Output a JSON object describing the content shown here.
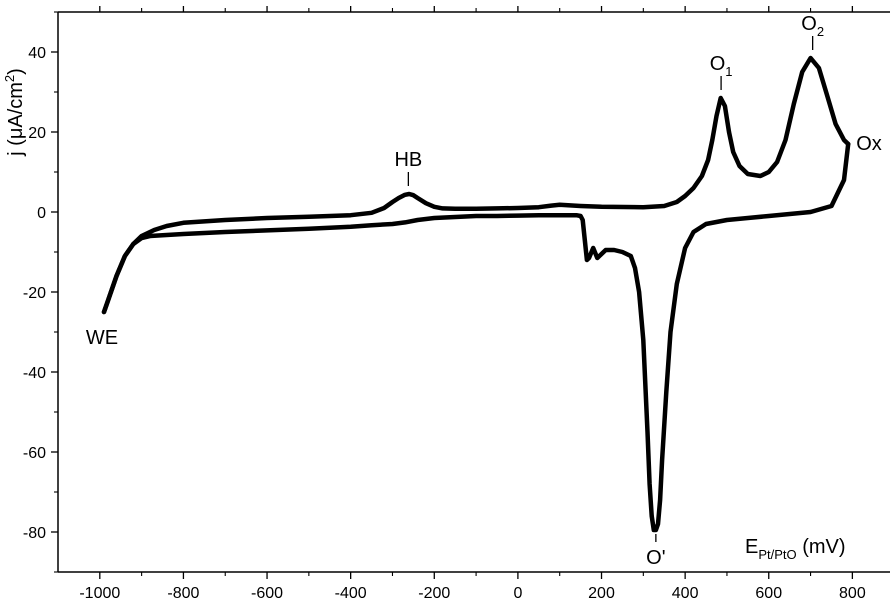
{
  "chart_data": {
    "type": "line",
    "title": "",
    "xlabel": {
      "main": "E",
      "sub": "Pt/PtO",
      "unit": " (mV)"
    },
    "ylabel": {
      "prefix": "j (",
      "mu": "μ",
      "unit": "A/cm",
      "sup": "2",
      "suffix": ")"
    },
    "xlim": [
      -1100,
      890
    ],
    "ylim": [
      -90,
      50
    ],
    "xticks": [
      -1000,
      -800,
      -600,
      -400,
      -200,
      0,
      200,
      400,
      600,
      800
    ],
    "xtick_labels": [
      "-1000",
      "-800",
      "-600",
      "-400",
      "-200",
      "0",
      "200",
      "400",
      "600",
      "800"
    ],
    "yticks": [
      -80,
      -60,
      -40,
      -20,
      0,
      20,
      40
    ],
    "ytick_labels": [
      "-80",
      "-60",
      "-40",
      "-20",
      "0",
      "20",
      "40"
    ],
    "grid": false,
    "series": [
      {
        "color": "#000000",
        "anodic_sweep": {
          "x": [
            -990,
            -980,
            -960,
            -940,
            -920,
            -900,
            -870,
            -840,
            -800,
            -700,
            -600,
            -500,
            -400,
            -350,
            -320,
            -300,
            -285,
            -270,
            -260,
            -250,
            -240,
            -220,
            -200,
            -180,
            -150,
            -100,
            -50,
            0,
            50,
            80,
            100,
            150,
            200,
            300,
            350,
            380,
            400,
            420,
            440,
            455,
            465,
            475,
            485,
            495,
            505,
            515,
            530,
            550,
            580,
            600,
            620,
            640,
            660,
            680,
            700,
            720,
            740,
            760,
            780,
            790
          ],
          "y": [
            -25,
            -22,
            -16,
            -11,
            -8,
            -6,
            -4.5,
            -3.5,
            -2.7,
            -2.0,
            -1.5,
            -1.2,
            -0.8,
            -0.2,
            1.0,
            2.5,
            3.5,
            4.3,
            4.5,
            4.2,
            3.5,
            2.2,
            1.3,
            0.9,
            0.8,
            0.8,
            0.9,
            1.0,
            1.2,
            1.6,
            1.8,
            1.5,
            1.3,
            1.2,
            1.5,
            2.5,
            4.0,
            6.0,
            9.0,
            13.0,
            18.0,
            24.0,
            28.5,
            26.5,
            20.0,
            15.0,
            11.5,
            9.5,
            9.0,
            10.0,
            12.5,
            18.0,
            27.0,
            35.0,
            38.5,
            36.0,
            29.0,
            22.0,
            18.0,
            17.0
          ]
        },
        "cathodic_sweep": {
          "x": [
            790,
            780,
            750,
            700,
            650,
            600,
            550,
            500,
            450,
            420,
            400,
            380,
            365,
            355,
            345,
            340,
            335,
            330,
            325,
            320,
            315,
            310,
            300,
            290,
            280,
            270,
            250,
            230,
            210,
            200,
            190,
            180,
            170,
            165,
            160,
            155,
            150,
            140,
            100,
            50,
            0,
            -50,
            -100,
            -200,
            -240,
            -270,
            -300,
            -350,
            -400,
            -500,
            -600,
            -700,
            -800,
            -850,
            -880,
            -900,
            -920,
            -940,
            -960,
            -980,
            -990
          ],
          "y": [
            17.0,
            8.0,
            1.5,
            0.0,
            -0.5,
            -1.0,
            -1.5,
            -2.0,
            -3.0,
            -5.0,
            -9.0,
            -18.0,
            -30.0,
            -45.0,
            -62.0,
            -72.0,
            -78.0,
            -79.5,
            -79.5,
            -76.0,
            -68.0,
            -55.0,
            -32.0,
            -20.0,
            -14.0,
            -11.0,
            -10.0,
            -9.5,
            -9.5,
            -10.5,
            -11.5,
            -9.0,
            -11.5,
            -12.0,
            -7.0,
            -2.0,
            -1.0,
            -0.8,
            -0.8,
            -0.8,
            -0.9,
            -1.0,
            -1.0,
            -1.5,
            -2.0,
            -2.6,
            -3.0,
            -3.3,
            -3.7,
            -4.2,
            -4.6,
            -5.0,
            -5.5,
            -5.8,
            -6.0,
            -6.5,
            -8.0,
            -11.0,
            -16.0,
            -22.0,
            -25.0
          ]
        }
      }
    ],
    "annotations": [
      {
        "label": "HB",
        "x": -262,
        "y": 4.5,
        "position": "above"
      },
      {
        "label": "O",
        "sub": "1",
        "x": 486,
        "y": 28.5,
        "position": "above"
      },
      {
        "label": "O",
        "sub": "2",
        "x": 705,
        "y": 38.5,
        "position": "above"
      },
      {
        "label": "Ox",
        "x": 790,
        "y": 17.0,
        "position": "right"
      },
      {
        "label": "WE",
        "x": -990,
        "y": -25,
        "position": "below"
      },
      {
        "label": "O'",
        "x": 330,
        "y": -79.5,
        "position": "below"
      }
    ]
  }
}
